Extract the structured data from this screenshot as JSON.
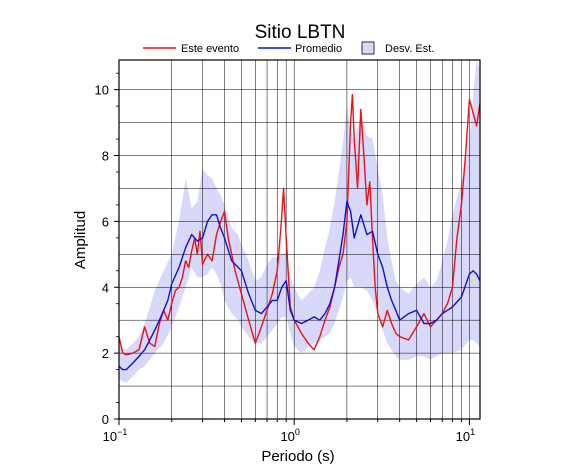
{
  "chart_data": {
    "type": "line",
    "title": "Sitio LBTN",
    "xlabel": "Periodo (s)",
    "ylabel": "Amplitud",
    "xscale": "log",
    "xlim": [
      0.1,
      11.5
    ],
    "ylim": [
      0,
      10.9
    ],
    "grid": true,
    "legend_position": "top",
    "x_ticks": [
      {
        "base": "10",
        "exp": "−1",
        "value": 0.1
      },
      {
        "base": "10",
        "exp": "0",
        "value": 1
      },
      {
        "base": "10",
        "exp": "1",
        "value": 10
      }
    ],
    "y_ticks": [
      "0",
      "2",
      "4",
      "6",
      "8",
      "10"
    ],
    "y_tick_values": [
      0,
      2,
      4,
      6,
      8,
      10
    ],
    "legend": [
      {
        "label": "Este evento",
        "type": "line",
        "color": "#ee1111"
      },
      {
        "label": "Promedio",
        "type": "line",
        "color": "#1111cc"
      },
      {
        "label": "Desv. Est.",
        "type": "patch",
        "color": "#d8d8fa"
      }
    ],
    "series": [
      {
        "name": "Este evento",
        "color": "#ee1111",
        "x": [
          0.1,
          0.105,
          0.11,
          0.12,
          0.13,
          0.14,
          0.15,
          0.16,
          0.17,
          0.18,
          0.19,
          0.2,
          0.21,
          0.22,
          0.23,
          0.24,
          0.25,
          0.26,
          0.27,
          0.28,
          0.29,
          0.3,
          0.32,
          0.34,
          0.36,
          0.38,
          0.4,
          0.42,
          0.44,
          0.46,
          0.5,
          0.55,
          0.6,
          0.62,
          0.65,
          0.7,
          0.75,
          0.8,
          0.84,
          0.87,
          0.9,
          0.95,
          1.0,
          1.05,
          1.1,
          1.2,
          1.3,
          1.4,
          1.5,
          1.6,
          1.7,
          1.8,
          1.9,
          2.0,
          2.1,
          2.15,
          2.2,
          2.3,
          2.4,
          2.5,
          2.6,
          2.7,
          2.8,
          2.9,
          3.0,
          3.2,
          3.4,
          3.6,
          3.8,
          4.0,
          4.5,
          5.0,
          5.5,
          6.0,
          6.5,
          7.0,
          7.5,
          8.0,
          8.5,
          9.0,
          9.5,
          10.0,
          10.5,
          11.0,
          11.5
        ],
        "y": [
          2.5,
          2.0,
          1.95,
          2.0,
          2.1,
          2.8,
          2.3,
          2.2,
          2.9,
          3.3,
          3.0,
          3.5,
          3.9,
          4.0,
          4.3,
          4.8,
          4.6,
          5.1,
          5.5,
          5.0,
          5.7,
          4.7,
          5.0,
          4.8,
          5.6,
          6.0,
          6.3,
          5.5,
          5.0,
          4.5,
          3.8,
          3.0,
          2.3,
          2.5,
          2.8,
          3.3,
          3.8,
          4.5,
          5.8,
          7.0,
          5.5,
          3.4,
          3.0,
          2.8,
          2.6,
          2.3,
          2.1,
          2.5,
          3.0,
          3.4,
          4.0,
          4.6,
          5.0,
          6.0,
          9.0,
          9.85,
          8.5,
          7.0,
          9.4,
          8.0,
          6.5,
          7.2,
          5.5,
          4.0,
          3.2,
          2.8,
          3.3,
          2.9,
          2.6,
          2.5,
          2.4,
          2.8,
          3.2,
          2.8,
          3.0,
          3.2,
          3.5,
          4.0,
          5.5,
          6.5,
          8.0,
          9.7,
          9.3,
          8.9,
          9.6
        ]
      },
      {
        "name": "Promedio",
        "color": "#1111cc",
        "x": [
          0.1,
          0.105,
          0.11,
          0.12,
          0.13,
          0.14,
          0.15,
          0.16,
          0.17,
          0.18,
          0.19,
          0.2,
          0.22,
          0.24,
          0.26,
          0.28,
          0.3,
          0.32,
          0.34,
          0.36,
          0.38,
          0.4,
          0.44,
          0.48,
          0.5,
          0.55,
          0.6,
          0.65,
          0.7,
          0.75,
          0.8,
          0.85,
          0.9,
          0.95,
          1.0,
          1.1,
          1.2,
          1.3,
          1.4,
          1.5,
          1.6,
          1.7,
          1.8,
          1.9,
          2.0,
          2.1,
          2.2,
          2.4,
          2.6,
          2.8,
          3.0,
          3.2,
          3.4,
          3.6,
          3.8,
          4.0,
          4.5,
          5.0,
          5.5,
          6.0,
          6.5,
          7.0,
          7.5,
          8.0,
          9.0,
          10.0,
          10.5,
          11.0,
          11.5
        ],
        "y": [
          1.6,
          1.5,
          1.5,
          1.7,
          1.9,
          2.1,
          2.4,
          2.7,
          3.0,
          3.3,
          3.6,
          4.1,
          4.6,
          5.2,
          5.6,
          5.4,
          5.5,
          6.0,
          6.2,
          6.2,
          5.8,
          5.5,
          4.8,
          4.6,
          4.5,
          3.8,
          3.3,
          3.2,
          3.4,
          3.6,
          3.6,
          4.0,
          4.2,
          3.3,
          3.0,
          2.9,
          3.0,
          3.1,
          3.0,
          3.2,
          3.5,
          4.0,
          4.8,
          5.6,
          6.6,
          6.3,
          5.5,
          6.2,
          5.6,
          5.7,
          5.0,
          4.6,
          4.0,
          3.6,
          3.3,
          3.0,
          3.2,
          3.3,
          2.9,
          2.9,
          3.0,
          3.2,
          3.3,
          3.4,
          3.7,
          4.4,
          4.5,
          4.4,
          4.2
        ]
      },
      {
        "name": "Desv. Est.",
        "type": "band",
        "color": "#d8d8fa",
        "x": [
          0.1,
          0.11,
          0.12,
          0.13,
          0.14,
          0.15,
          0.16,
          0.18,
          0.2,
          0.22,
          0.24,
          0.26,
          0.28,
          0.3,
          0.32,
          0.34,
          0.36,
          0.38,
          0.4,
          0.44,
          0.48,
          0.5,
          0.55,
          0.6,
          0.65,
          0.7,
          0.75,
          0.8,
          0.85,
          0.9,
          0.95,
          1.0,
          1.1,
          1.2,
          1.3,
          1.4,
          1.5,
          1.6,
          1.7,
          1.8,
          1.9,
          2.0,
          2.1,
          2.2,
          2.4,
          2.6,
          2.8,
          3.0,
          3.2,
          3.4,
          3.6,
          3.8,
          4.0,
          4.5,
          5.0,
          5.5,
          6.0,
          6.5,
          7.0,
          7.5,
          8.0,
          9.0,
          10.0,
          10.5,
          11.0,
          11.5
        ],
        "upper": [
          2.2,
          2.1,
          2.3,
          2.5,
          2.9,
          3.4,
          3.9,
          4.5,
          5.0,
          6.0,
          7.3,
          6.4,
          6.6,
          7.6,
          7.4,
          7.3,
          7.0,
          6.8,
          6.5,
          5.8,
          5.6,
          5.3,
          4.8,
          4.2,
          4.3,
          4.7,
          4.9,
          4.9,
          5.0,
          5.0,
          4.3,
          4.0,
          3.6,
          3.8,
          4.0,
          4.5,
          5.2,
          5.8,
          6.6,
          7.5,
          8.4,
          9.5,
          8.8,
          8.4,
          9.2,
          8.6,
          8.5,
          7.6,
          6.8,
          5.5,
          4.8,
          4.2,
          4.0,
          3.8,
          4.1,
          4.3,
          4.0,
          4.2,
          4.8,
          5.4,
          6.2,
          7.2,
          8.4,
          9.8,
          10.9,
          10.6
        ],
        "lower": [
          1.2,
          1.1,
          1.3,
          1.5,
          1.6,
          1.8,
          2.0,
          2.3,
          2.8,
          3.4,
          4.0,
          4.6,
          4.3,
          4.3,
          4.4,
          4.6,
          4.4,
          4.1,
          3.6,
          3.2,
          3.0,
          2.8,
          2.5,
          2.3,
          2.3,
          2.5,
          2.7,
          2.9,
          3.1,
          3.1,
          2.6,
          2.2,
          2.0,
          2.2,
          2.3,
          2.4,
          2.5,
          2.6,
          2.9,
          3.3,
          3.7,
          4.2,
          4.3,
          4.0,
          4.0,
          3.9,
          3.6,
          3.2,
          2.7,
          2.3,
          2.1,
          1.9,
          1.8,
          1.8,
          1.9,
          1.9,
          1.8,
          1.9,
          2.0,
          2.0,
          2.0,
          2.1,
          2.4,
          2.4,
          2.3,
          2.2
        ]
      }
    ]
  }
}
